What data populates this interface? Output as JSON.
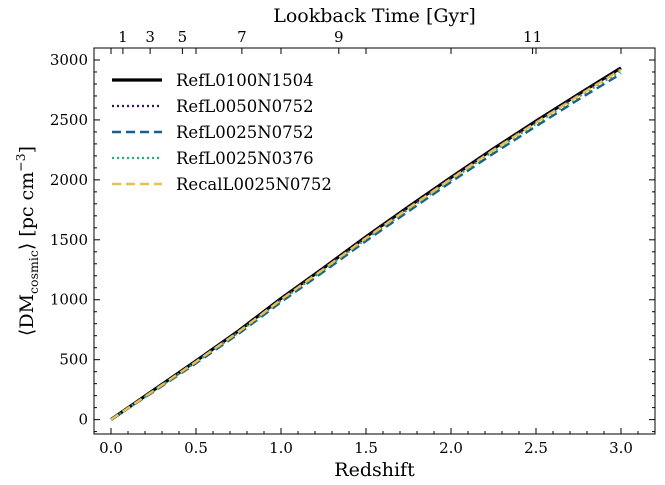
{
  "chart_data": {
    "type": "line",
    "title": "",
    "xlabel": "Redshift",
    "ylabel": "⟨DM",
    "ylabel_sub": "cosmic",
    "ylabel_unit": "⟩  [pc cm",
    "ylabel_exp": "−3",
    "ylabel_close": "]",
    "x2label": "Lookback Time [Gyr]",
    "xlim": [
      -0.1,
      3.2
    ],
    "ylim": [
      -120,
      3100
    ],
    "xticks": [
      0.0,
      0.5,
      1.0,
      1.5,
      2.0,
      2.5,
      3.0
    ],
    "xtick_labels": [
      "0.0",
      "0.5",
      "1.0",
      "1.5",
      "2.0",
      "2.5",
      "3.0"
    ],
    "yticks": [
      0,
      500,
      1000,
      1500,
      2000,
      2500,
      3000
    ],
    "ytick_labels": [
      "0",
      "500",
      "1000",
      "1500",
      "2000",
      "2500",
      "3000"
    ],
    "top_ticks": [
      {
        "label": "1",
        "z": 0.07
      },
      {
        "label": "3",
        "z": 0.23
      },
      {
        "label": "5",
        "z": 0.42
      },
      {
        "label": "7",
        "z": 0.77
      },
      {
        "label": "9",
        "z": 1.34
      },
      {
        "label": "11",
        "z": 2.48
      }
    ],
    "legend_position": "upper-left",
    "grid": false,
    "series": [
      {
        "name": "RefL0100N1504",
        "color": "#000000",
        "style": "solid",
        "width": 3.2,
        "x": [
          0.0,
          0.25,
          0.5,
          0.75,
          1.0,
          1.25,
          1.5,
          1.75,
          2.0,
          2.25,
          2.5,
          2.75,
          3.0
        ],
        "y": [
          0,
          245,
          490,
          740,
          1010,
          1265,
          1525,
          1775,
          2020,
          2260,
          2490,
          2715,
          2935
        ]
      },
      {
        "name": "RefL0050N0752",
        "color": "#3b0f4f",
        "style": "dotted",
        "width": 2.2,
        "x": [
          0.0,
          0.25,
          0.5,
          0.75,
          1.0,
          1.25,
          1.5,
          1.75,
          2.0,
          2.25,
          2.5,
          2.75,
          3.0
        ],
        "y": [
          0,
          243,
          488,
          738,
          1007,
          1262,
          1522,
          1772,
          2017,
          2257,
          2487,
          2712,
          2930
        ]
      },
      {
        "name": "RefL0025N0752",
        "color": "#1a5f8a",
        "style": "dashed",
        "width": 2.4,
        "x": [
          0.0,
          0.25,
          0.5,
          0.75,
          1.0,
          1.25,
          1.5,
          1.75,
          2.0,
          2.25,
          2.5,
          2.75,
          3.0
        ],
        "y": [
          0,
          232,
          470,
          715,
          980,
          1233,
          1490,
          1738,
          1982,
          2220,
          2447,
          2670,
          2885
        ]
      },
      {
        "name": "RefL0025N0376",
        "color": "#2ca87a",
        "style": "dotted",
        "width": 2.2,
        "x": [
          0.0,
          0.25,
          0.5,
          0.75,
          1.0,
          1.25,
          1.5,
          1.75,
          2.0,
          2.25,
          2.5,
          2.75,
          3.0
        ],
        "y": [
          0,
          238,
          478,
          726,
          993,
          1247,
          1505,
          1754,
          1999,
          2238,
          2467,
          2691,
          2908
        ]
      },
      {
        "name": "RecalL0025N0752",
        "color": "#e5c155",
        "style": "dashed",
        "width": 2.4,
        "x": [
          0.0,
          0.25,
          0.5,
          0.75,
          1.0,
          1.25,
          1.5,
          1.75,
          2.0,
          2.25,
          2.5,
          2.75,
          3.0
        ],
        "y": [
          0,
          240,
          483,
          732,
          1000,
          1255,
          1514,
          1764,
          2009,
          2249,
          2478,
          2702,
          2920
        ]
      }
    ]
  }
}
